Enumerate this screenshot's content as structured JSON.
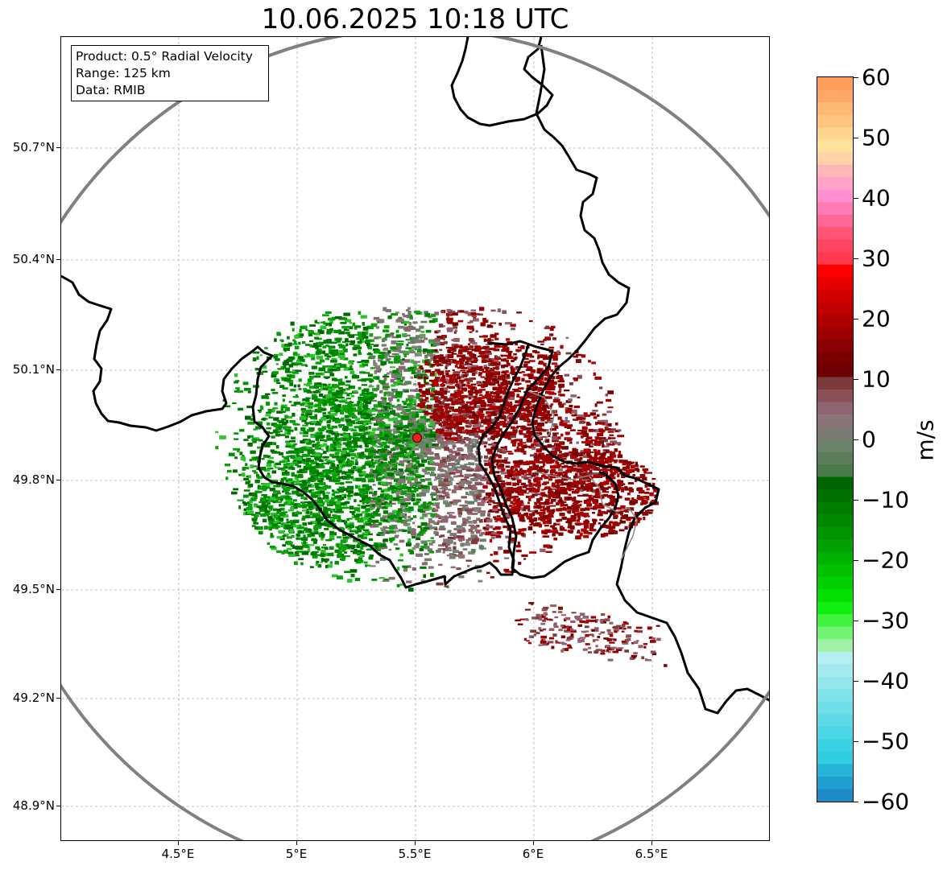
{
  "title": "10.06.2025 10:18 UTC",
  "info_box": {
    "product": "Product: 0.5° Radial Velocity",
    "range": "Range: 125 km",
    "data": "Data: RMIB"
  },
  "map": {
    "lat_labels": [
      "50.7°N",
      "50.4°N",
      "50.1°N",
      "49.8°N",
      "49.5°N",
      "49.2°N",
      "48.9°N"
    ],
    "lon_labels": [
      "4.5°E",
      "5°E",
      "5.5°E",
      "6°E",
      "6.5°E"
    ],
    "radar_site": {
      "lon": 5.5,
      "lat": 49.91
    },
    "colors": {
      "range_ring": "#808080",
      "border": "#000000",
      "grid": "#b0b0b0",
      "radar_marker": "#e32222"
    }
  },
  "colorbar": {
    "unit": "m/s",
    "tick_labels": [
      "60",
      "50",
      "40",
      "30",
      "20",
      "10",
      "0",
      "−10",
      "−20",
      "−30",
      "−40",
      "−50",
      "−60"
    ],
    "min": -60,
    "max": 60
  }
}
